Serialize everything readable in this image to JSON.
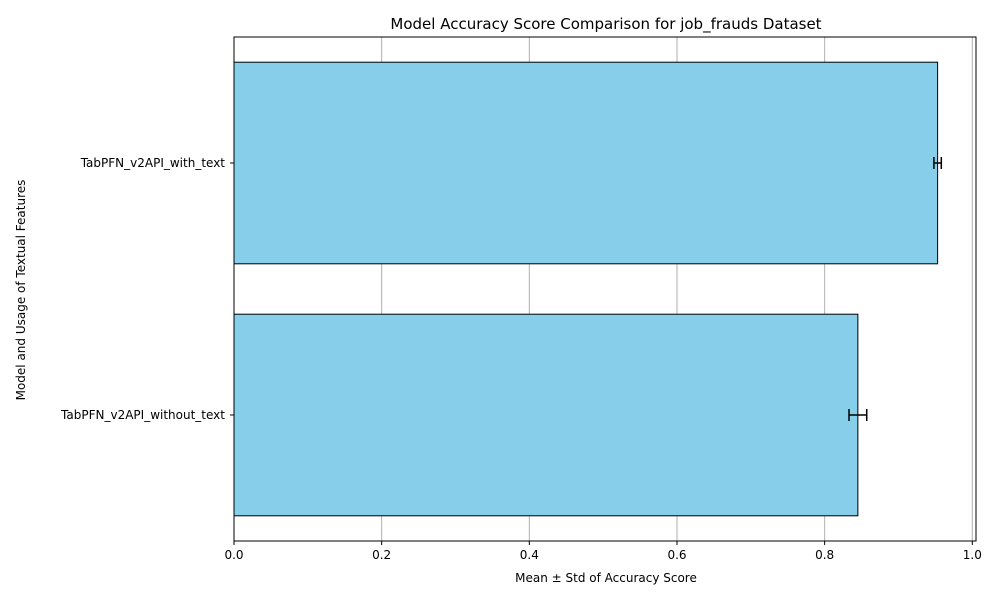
{
  "chart_data": {
    "type": "bar",
    "orientation": "horizontal",
    "title": "Model Accuracy Score Comparison for job_frauds Dataset",
    "xlabel": "Mean ± Std of Accuracy Score",
    "ylabel": "Model and Usage of Textual Features",
    "categories": [
      "TabPFN_v2API_with_text",
      "TabPFN_v2API_without_text"
    ],
    "values": [
      0.953,
      0.845
    ],
    "errors": [
      0.005,
      0.012
    ],
    "xlim": [
      0.0,
      1.005
    ],
    "xticks": [
      0.0,
      0.2,
      0.4,
      0.6,
      0.8,
      1.0
    ],
    "xtick_labels": [
      "0.0",
      "0.2",
      "0.4",
      "0.6",
      "0.8",
      "1.0"
    ],
    "grid": "x",
    "bar_color": "#87CEEB",
    "edge_color": "#000000",
    "grid_color": "#b0b0b0"
  }
}
